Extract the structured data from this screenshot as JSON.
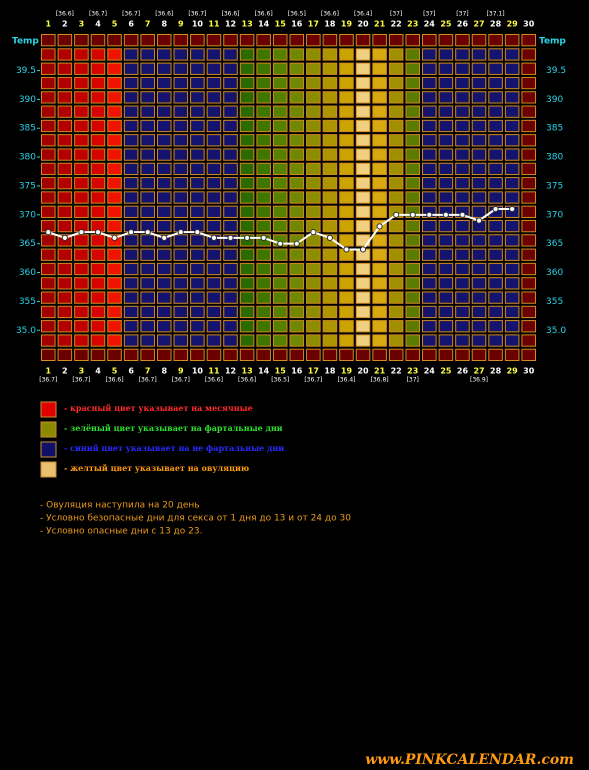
{
  "chart_data": {
    "type": "line",
    "y_label": "Temp",
    "x": [
      1,
      2,
      3,
      4,
      5,
      6,
      7,
      8,
      9,
      10,
      11,
      12,
      13,
      14,
      15,
      16,
      17,
      18,
      19,
      20,
      21,
      22,
      23,
      24,
      25,
      26,
      27,
      28,
      29,
      30
    ],
    "series": [
      {
        "color": "#ffffff",
        "values": [
          36.7,
          36.6,
          36.7,
          36.7,
          36.6,
          36.7,
          36.7,
          36.6,
          36.7,
          36.7,
          36.6,
          36.6,
          36.6,
          36.6,
          36.5,
          36.5,
          36.7,
          36.6,
          36.4,
          36.4,
          36.8,
          37,
          37,
          37,
          37,
          37,
          36.9,
          37.1,
          37.1,
          null
        ],
        "value_labels": [
          "[36.7]",
          "[36.6]",
          "[36.7]",
          "[36.7]",
          "[36.6]",
          "[36.7]",
          "[36.7]",
          "[36.6]",
          "[36.7]",
          "[36.7]",
          "[36.6]",
          "[36.6]",
          "[36.6]",
          "[36.6]",
          "[36.5]",
          "[36.5]",
          "[36.7]",
          "[36.6]",
          "[36.4]",
          "[36.4]",
          "[36.8]",
          "[37]",
          "[37]",
          "[37]",
          null,
          "[37]",
          "[36.9]",
          "[37.1]",
          null,
          null
        ]
      }
    ],
    "column_colors": [
      "#a00000",
      "#b20000",
      "#c20000",
      "#d40400",
      "#f01400",
      "#14146e",
      "#14146e",
      "#14146e",
      "#14146e",
      "#14146e",
      "#14146e",
      "#14146e",
      "#2a6a00",
      "#3f7600",
      "#568000",
      "#708800",
      "#8c8e00",
      "#ac9600",
      "#cca400",
      "#f0d080",
      "#d8aa10",
      "#a09000",
      "#5a7a00",
      "#14146e",
      "#14146e",
      "#14146e",
      "#14146e",
      "#14146e",
      "#14146e",
      "#6a0000"
    ],
    "ylim": [
      34.45,
      40.15
    ],
    "yticks": [
      39.5,
      {
        "value": 39.0,
        "label": "390"
      },
      {
        "value": 38.5,
        "label": "385"
      },
      {
        "value": 38.0,
        "label": "380"
      },
      {
        "value": 37.5,
        "label": "375"
      },
      {
        "value": 37.0,
        "label": "370"
      },
      {
        "value": 36.5,
        "label": "365"
      },
      {
        "value": 36.0,
        "label": "360"
      },
      {
        "value": 35.5,
        "label": "355"
      },
      {
        "value": 35.0,
        "label": "35.0"
      }
    ],
    "legend": [
      {
        "color": "#e00000",
        "text_color": "#ff2a2a",
        "label": "- красный цвет указывает на месячные"
      },
      {
        "color": "#8a8a00",
        "text_color": "#2ee02e",
        "label": "- зелёный цвет указывает на фартальные дни"
      },
      {
        "color": "#10106a",
        "text_color": "#2a2aff",
        "label": "- синий цвет указывает на не фартальные дни"
      },
      {
        "color": "#e8c070",
        "text_color": "#ff9a10",
        "label": "- желтый цвет указывает на овуляцию"
      }
    ],
    "notes": [
      "- Овуляция наступила на 20 день",
      "- Условно безопасные дни для секса от 1 дня до 13 и от 24 до 30",
      "- Условно опасные дни с 13 до 23."
    ],
    "footer": "www.PINKCALENDAR.com"
  }
}
